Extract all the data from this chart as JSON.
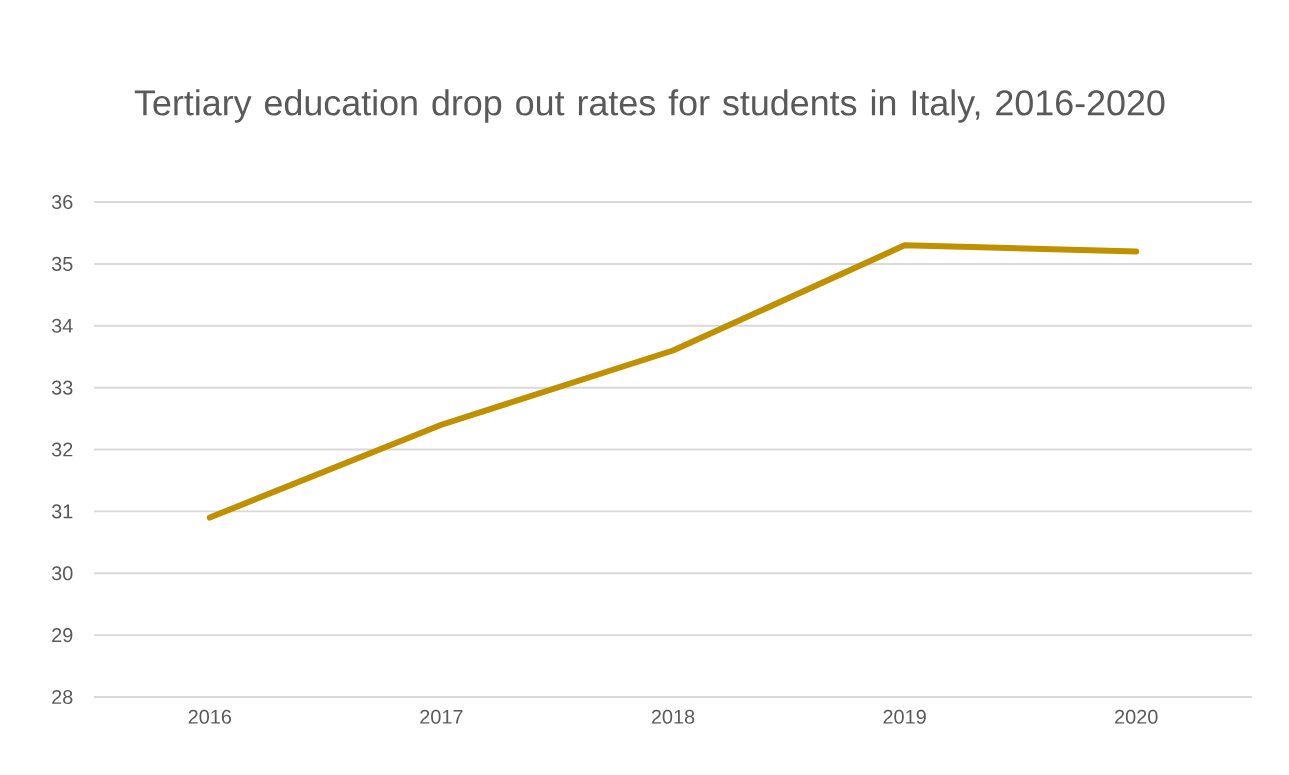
{
  "chart_data": {
    "type": "line",
    "title": "Tertiary education drop out rates for students in Italy, 2016-2020",
    "categories": [
      "2016",
      "2017",
      "2018",
      "2019",
      "2020"
    ],
    "values": [
      30.9,
      32.4,
      33.6,
      35.3,
      35.2
    ],
    "color": "#bf9000",
    "ylim": [
      28,
      36
    ],
    "yticks": [
      28,
      29,
      30,
      31,
      32,
      33,
      34,
      35,
      36
    ],
    "grid": "y",
    "marker": "none",
    "line_style": "solid"
  }
}
